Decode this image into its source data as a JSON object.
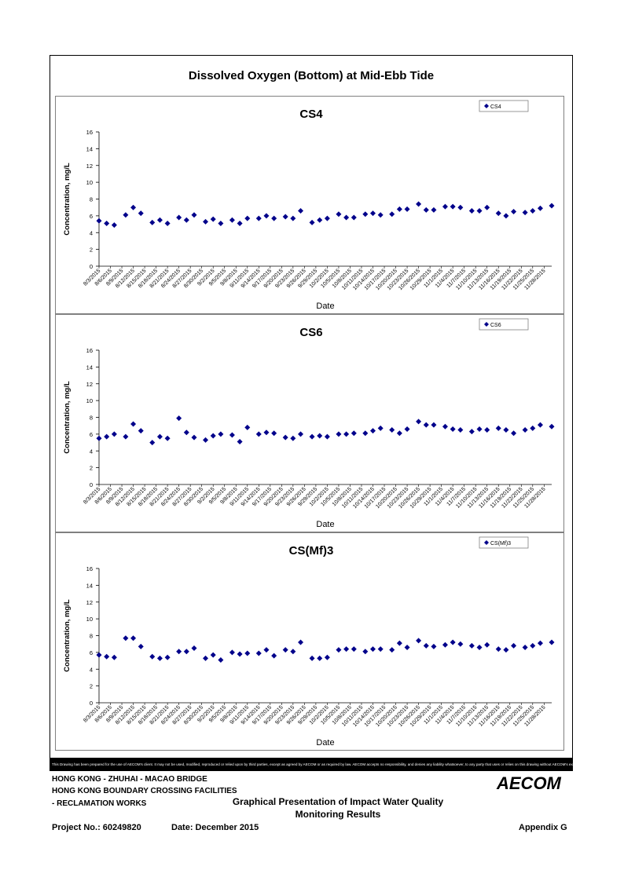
{
  "page_title": "Dissolved Oxygen (Bottom) at Mid-Ebb Tide",
  "footer": {
    "disclaimer": "This Drawing has been prepared for the use of AECOM's client. It may not be used, modified, reproduced or relied upon by third parties, except as agreed by AECOM or as required by law. AECOM accepts no responsibility, and denies any liability whatsoever, to any party that uses or relies on this drawing without AECOM's express written consent.",
    "line1": "HONG KONG - ZHUHAI - MACAO BRIDGE",
    "line2": "HONG KONG BOUNDARY CROSSING FACILITIES",
    "line3": "- RECLAMATION WORKS",
    "project_no": "Project No.: 60249820",
    "date": "Date: December 2015",
    "center_line1": "Graphical Presentation of Impact Water Quality",
    "center_line2": "Monitoring Results",
    "appendix": "Appendix G",
    "logo": "AECOM"
  },
  "colors": {
    "marker": "#00008B",
    "frame": "#000000",
    "grid_border": "#808080"
  },
  "chart_data": [
    {
      "type": "scatter",
      "title": "CS4",
      "xlabel": "Date",
      "ylabel": "Concentration, mg/L",
      "ylim": [
        0,
        16
      ],
      "yticks": [
        0,
        2,
        4,
        6,
        8,
        10,
        12,
        14,
        16
      ],
      "xlim": [
        "8/3/2015",
        "11/30/2015"
      ],
      "xticks": [
        "8/3/2015",
        "8/6/2015",
        "8/9/2015",
        "8/12/2015",
        "8/15/2015",
        "8/18/2015",
        "8/21/2015",
        "8/24/2015",
        "8/27/2015",
        "8/30/2015",
        "9/2/2015",
        "9/5/2015",
        "9/8/2015",
        "9/11/2015",
        "9/14/2015",
        "9/17/2015",
        "9/20/2015",
        "9/23/2015",
        "9/26/2015",
        "9/29/2015",
        "10/2/2015",
        "10/5/2015",
        "10/8/2015",
        "10/11/2015",
        "10/14/2015",
        "10/17/2015",
        "10/20/2015",
        "10/23/2015",
        "10/26/2015",
        "10/29/2015",
        "11/1/2015",
        "11/4/2015",
        "11/7/2015",
        "11/10/2015",
        "11/13/2015",
        "11/16/2015",
        "11/19/2015",
        "11/22/2015",
        "11/25/2015",
        "11/28/2015"
      ],
      "legend": "top-right",
      "series": [
        {
          "name": "CS4",
          "x": [
            "8/3/2015",
            "8/5/2015",
            "8/7/2015",
            "8/10/2015",
            "8/12/2015",
            "8/14/2015",
            "8/17/2015",
            "8/19/2015",
            "8/21/2015",
            "8/24/2015",
            "8/26/2015",
            "8/28/2015",
            "8/31/2015",
            "9/2/2015",
            "9/4/2015",
            "9/7/2015",
            "9/9/2015",
            "9/11/2015",
            "9/14/2015",
            "9/16/2015",
            "9/18/2015",
            "9/21/2015",
            "9/23/2015",
            "9/25/2015",
            "9/28/2015",
            "9/30/2015",
            "10/2/2015",
            "10/5/2015",
            "10/7/2015",
            "10/9/2015",
            "10/12/2015",
            "10/14/2015",
            "10/16/2015",
            "10/19/2015",
            "10/21/2015",
            "10/23/2015",
            "10/26/2015",
            "10/28/2015",
            "10/30/2015",
            "11/2/2015",
            "11/4/2015",
            "11/6/2015",
            "11/9/2015",
            "11/11/2015",
            "11/13/2015",
            "11/16/2015",
            "11/18/2015",
            "11/20/2015",
            "11/23/2015",
            "11/25/2015",
            "11/27/2015",
            "11/30/2015"
          ],
          "y": [
            5.4,
            5.1,
            4.9,
            6.1,
            7.0,
            6.3,
            5.2,
            5.5,
            5.1,
            5.8,
            5.5,
            6.1,
            5.3,
            5.6,
            5.1,
            5.5,
            5.1,
            5.7,
            5.7,
            6.0,
            5.7,
            5.9,
            5.7,
            6.6,
            5.2,
            5.5,
            5.7,
            6.2,
            5.8,
            5.8,
            6.2,
            6.3,
            6.1,
            6.2,
            6.8,
            6.8,
            7.4,
            6.7,
            6.7,
            7.1,
            7.1,
            7.0,
            6.6,
            6.6,
            7.0,
            6.3,
            6.0,
            6.5,
            6.4,
            6.6,
            6.9,
            7.2
          ]
        }
      ]
    },
    {
      "type": "scatter",
      "title": "CS6",
      "xlabel": "Date",
      "ylabel": "Concentration, mg/L",
      "ylim": [
        0,
        16
      ],
      "yticks": [
        0,
        2,
        4,
        6,
        8,
        10,
        12,
        14,
        16
      ],
      "xlim": [
        "8/3/2015",
        "11/30/2015"
      ],
      "xticks": [
        "8/3/2015",
        "8/6/2015",
        "8/9/2015",
        "8/12/2015",
        "8/15/2015",
        "8/18/2015",
        "8/21/2015",
        "8/24/2015",
        "8/27/2015",
        "8/30/2015",
        "9/2/2015",
        "9/5/2015",
        "9/8/2015",
        "9/11/2015",
        "9/14/2015",
        "9/17/2015",
        "9/20/2015",
        "9/23/2015",
        "9/26/2015",
        "9/29/2015",
        "10/2/2015",
        "10/5/2015",
        "10/8/2015",
        "10/11/2015",
        "10/14/2015",
        "10/17/2015",
        "10/20/2015",
        "10/23/2015",
        "10/26/2015",
        "10/29/2015",
        "11/1/2015",
        "11/4/2015",
        "11/7/2015",
        "11/10/2015",
        "11/13/2015",
        "11/16/2015",
        "11/19/2015",
        "11/22/2015",
        "11/25/2015",
        "11/28/2015"
      ],
      "legend": "top-right",
      "series": [
        {
          "name": "CS6",
          "x": [
            "8/3/2015",
            "8/5/2015",
            "8/7/2015",
            "8/10/2015",
            "8/12/2015",
            "8/14/2015",
            "8/17/2015",
            "8/19/2015",
            "8/21/2015",
            "8/24/2015",
            "8/26/2015",
            "8/28/2015",
            "8/31/2015",
            "9/2/2015",
            "9/4/2015",
            "9/7/2015",
            "9/9/2015",
            "9/11/2015",
            "9/14/2015",
            "9/16/2015",
            "9/18/2015",
            "9/21/2015",
            "9/23/2015",
            "9/25/2015",
            "9/28/2015",
            "9/30/2015",
            "10/2/2015",
            "10/5/2015",
            "10/7/2015",
            "10/9/2015",
            "10/12/2015",
            "10/14/2015",
            "10/16/2015",
            "10/19/2015",
            "10/21/2015",
            "10/23/2015",
            "10/26/2015",
            "10/28/2015",
            "10/30/2015",
            "11/2/2015",
            "11/4/2015",
            "11/6/2015",
            "11/9/2015",
            "11/11/2015",
            "11/13/2015",
            "11/16/2015",
            "11/18/2015",
            "11/20/2015",
            "11/23/2015",
            "11/25/2015",
            "11/27/2015",
            "11/30/2015"
          ],
          "y": [
            5.5,
            5.7,
            6.0,
            5.7,
            7.2,
            6.4,
            5.0,
            5.7,
            5.5,
            7.9,
            6.2,
            5.6,
            5.3,
            5.8,
            6.0,
            5.9,
            5.1,
            6.8,
            6.0,
            6.2,
            6.1,
            5.6,
            5.5,
            6.0,
            5.7,
            5.8,
            5.7,
            6.0,
            6.0,
            6.1,
            6.1,
            6.4,
            6.7,
            6.5,
            6.1,
            6.6,
            7.5,
            7.1,
            7.1,
            6.9,
            6.6,
            6.5,
            6.3,
            6.6,
            6.5,
            6.7,
            6.5,
            6.1,
            6.5,
            6.7,
            7.1,
            6.9
          ]
        }
      ]
    },
    {
      "type": "scatter",
      "title": "CS(Mf)3",
      "xlabel": "Date",
      "ylabel": "Concentration, mg/L",
      "ylim": [
        0,
        16
      ],
      "yticks": [
        0,
        2,
        4,
        6,
        8,
        10,
        12,
        14,
        16
      ],
      "xlim": [
        "8/3/2015",
        "11/30/2015"
      ],
      "xticks": [
        "8/3/2015",
        "8/6/2015",
        "8/9/2015",
        "8/12/2015",
        "8/15/2015",
        "8/18/2015",
        "8/21/2015",
        "8/24/2015",
        "8/27/2015",
        "8/30/2015",
        "9/2/2015",
        "9/5/2015",
        "9/8/2015",
        "9/11/2015",
        "9/14/2015",
        "9/17/2015",
        "9/20/2015",
        "9/23/2015",
        "9/26/2015",
        "9/29/2015",
        "10/2/2015",
        "10/5/2015",
        "10/8/2015",
        "10/11/2015",
        "10/14/2015",
        "10/17/2015",
        "10/20/2015",
        "10/23/2015",
        "10/26/2015",
        "10/29/2015",
        "11/1/2015",
        "11/4/2015",
        "11/7/2015",
        "11/10/2015",
        "11/13/2015",
        "11/16/2015",
        "11/19/2015",
        "11/22/2015",
        "11/25/2015",
        "11/28/2015"
      ],
      "legend": "top-right",
      "series": [
        {
          "name": "CS(Mf)3",
          "x": [
            "8/3/2015",
            "8/5/2015",
            "8/7/2015",
            "8/10/2015",
            "8/12/2015",
            "8/14/2015",
            "8/17/2015",
            "8/19/2015",
            "8/21/2015",
            "8/24/2015",
            "8/26/2015",
            "8/28/2015",
            "8/31/2015",
            "9/2/2015",
            "9/4/2015",
            "9/7/2015",
            "9/9/2015",
            "9/11/2015",
            "9/14/2015",
            "9/16/2015",
            "9/18/2015",
            "9/21/2015",
            "9/23/2015",
            "9/25/2015",
            "9/28/2015",
            "9/30/2015",
            "10/2/2015",
            "10/5/2015",
            "10/7/2015",
            "10/9/2015",
            "10/12/2015",
            "10/14/2015",
            "10/16/2015",
            "10/19/2015",
            "10/21/2015",
            "10/23/2015",
            "10/26/2015",
            "10/28/2015",
            "10/30/2015",
            "11/2/2015",
            "11/4/2015",
            "11/6/2015",
            "11/9/2015",
            "11/11/2015",
            "11/13/2015",
            "11/16/2015",
            "11/18/2015",
            "11/20/2015",
            "11/23/2015",
            "11/25/2015",
            "11/27/2015",
            "11/30/2015"
          ],
          "y": [
            5.7,
            5.5,
            5.4,
            7.7,
            7.7,
            6.7,
            5.5,
            5.3,
            5.4,
            6.1,
            6.1,
            6.5,
            5.3,
            5.7,
            5.1,
            6.0,
            5.8,
            5.9,
            5.9,
            6.3,
            5.6,
            6.3,
            6.1,
            7.2,
            5.3,
            5.3,
            5.4,
            6.3,
            6.4,
            6.4,
            6.1,
            6.4,
            6.4,
            6.3,
            7.1,
            6.6,
            7.4,
            6.8,
            6.7,
            6.9,
            7.2,
            7.0,
            6.8,
            6.6,
            6.9,
            6.4,
            6.3,
            6.8,
            6.6,
            6.8,
            7.1,
            7.2
          ]
        }
      ]
    }
  ]
}
